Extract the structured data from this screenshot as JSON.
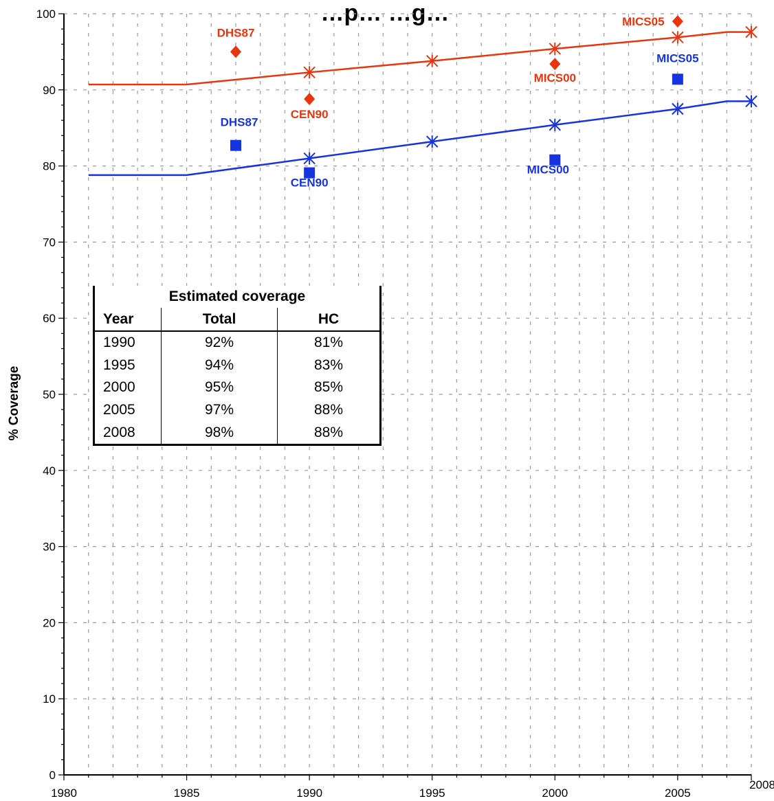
{
  "chart_data": {
    "type": "line",
    "title": "…p… …g…",
    "ylabel": "% Coverage",
    "xlim": [
      1980,
      2008
    ],
    "ylim": [
      0,
      100
    ],
    "x_ticks": [
      1980,
      1985,
      1990,
      1995,
      2000,
      2005,
      2008
    ],
    "y_ticks": [
      0,
      10,
      20,
      30,
      40,
      50,
      60,
      70,
      80,
      90,
      100
    ],
    "grid": true,
    "colors": {
      "red": "#e8350e",
      "blue": "#1633e0"
    },
    "series": [
      {
        "key": "total",
        "color": "#e8350e",
        "line": [
          [
            1981,
            90.7
          ],
          [
            1985,
            90.7
          ],
          [
            1990,
            92.3
          ],
          [
            1995,
            93.8
          ],
          [
            2000,
            95.4
          ],
          [
            2005,
            96.9
          ],
          [
            2007,
            97.6
          ],
          [
            2008,
            97.6
          ]
        ],
        "estimates": [
          [
            1990,
            92.3
          ],
          [
            1995,
            93.8
          ],
          [
            2000,
            95.4
          ],
          [
            2005,
            96.9
          ],
          [
            2008,
            97.6
          ]
        ],
        "surveys": [
          {
            "x": 1987,
            "y": 95.0,
            "label": "DHS87"
          },
          {
            "x": 1990,
            "y": 88.8,
            "label": "CEN90"
          },
          {
            "x": 2000,
            "y": 93.4,
            "label": "MICS00"
          },
          {
            "x": 2005,
            "y": 99.0,
            "label": "MICS05"
          }
        ]
      },
      {
        "key": "hc",
        "color": "#1633e0",
        "line": [
          [
            1981,
            78.8
          ],
          [
            1985,
            78.8
          ],
          [
            1990,
            81.0
          ],
          [
            1995,
            83.2
          ],
          [
            2000,
            85.4
          ],
          [
            2005,
            87.5
          ],
          [
            2007,
            88.5
          ],
          [
            2008,
            88.5
          ]
        ],
        "estimates": [
          [
            1990,
            81.0
          ],
          [
            1995,
            83.2
          ],
          [
            2000,
            85.4
          ],
          [
            2005,
            87.5
          ],
          [
            2008,
            88.5
          ]
        ],
        "surveys": [
          {
            "x": 1987,
            "y": 82.7,
            "label": "DHS87"
          },
          {
            "x": 1990,
            "y": 79.1,
            "label": "CEN90"
          },
          {
            "x": 2000,
            "y": 80.8,
            "label": "MICS00"
          },
          {
            "x": 2005,
            "y": 91.4,
            "label": "MICS05"
          }
        ]
      }
    ]
  },
  "table": {
    "title": "Estimated coverage",
    "headers": [
      "Year",
      "Total",
      "HC"
    ],
    "rows": [
      [
        "1990",
        "92%",
        "81%"
      ],
      [
        "1995",
        "94%",
        "83%"
      ],
      [
        "2000",
        "95%",
        "85%"
      ],
      [
        "2005",
        "97%",
        "88%"
      ],
      [
        "2008",
        "98%",
        "88%"
      ]
    ]
  }
}
